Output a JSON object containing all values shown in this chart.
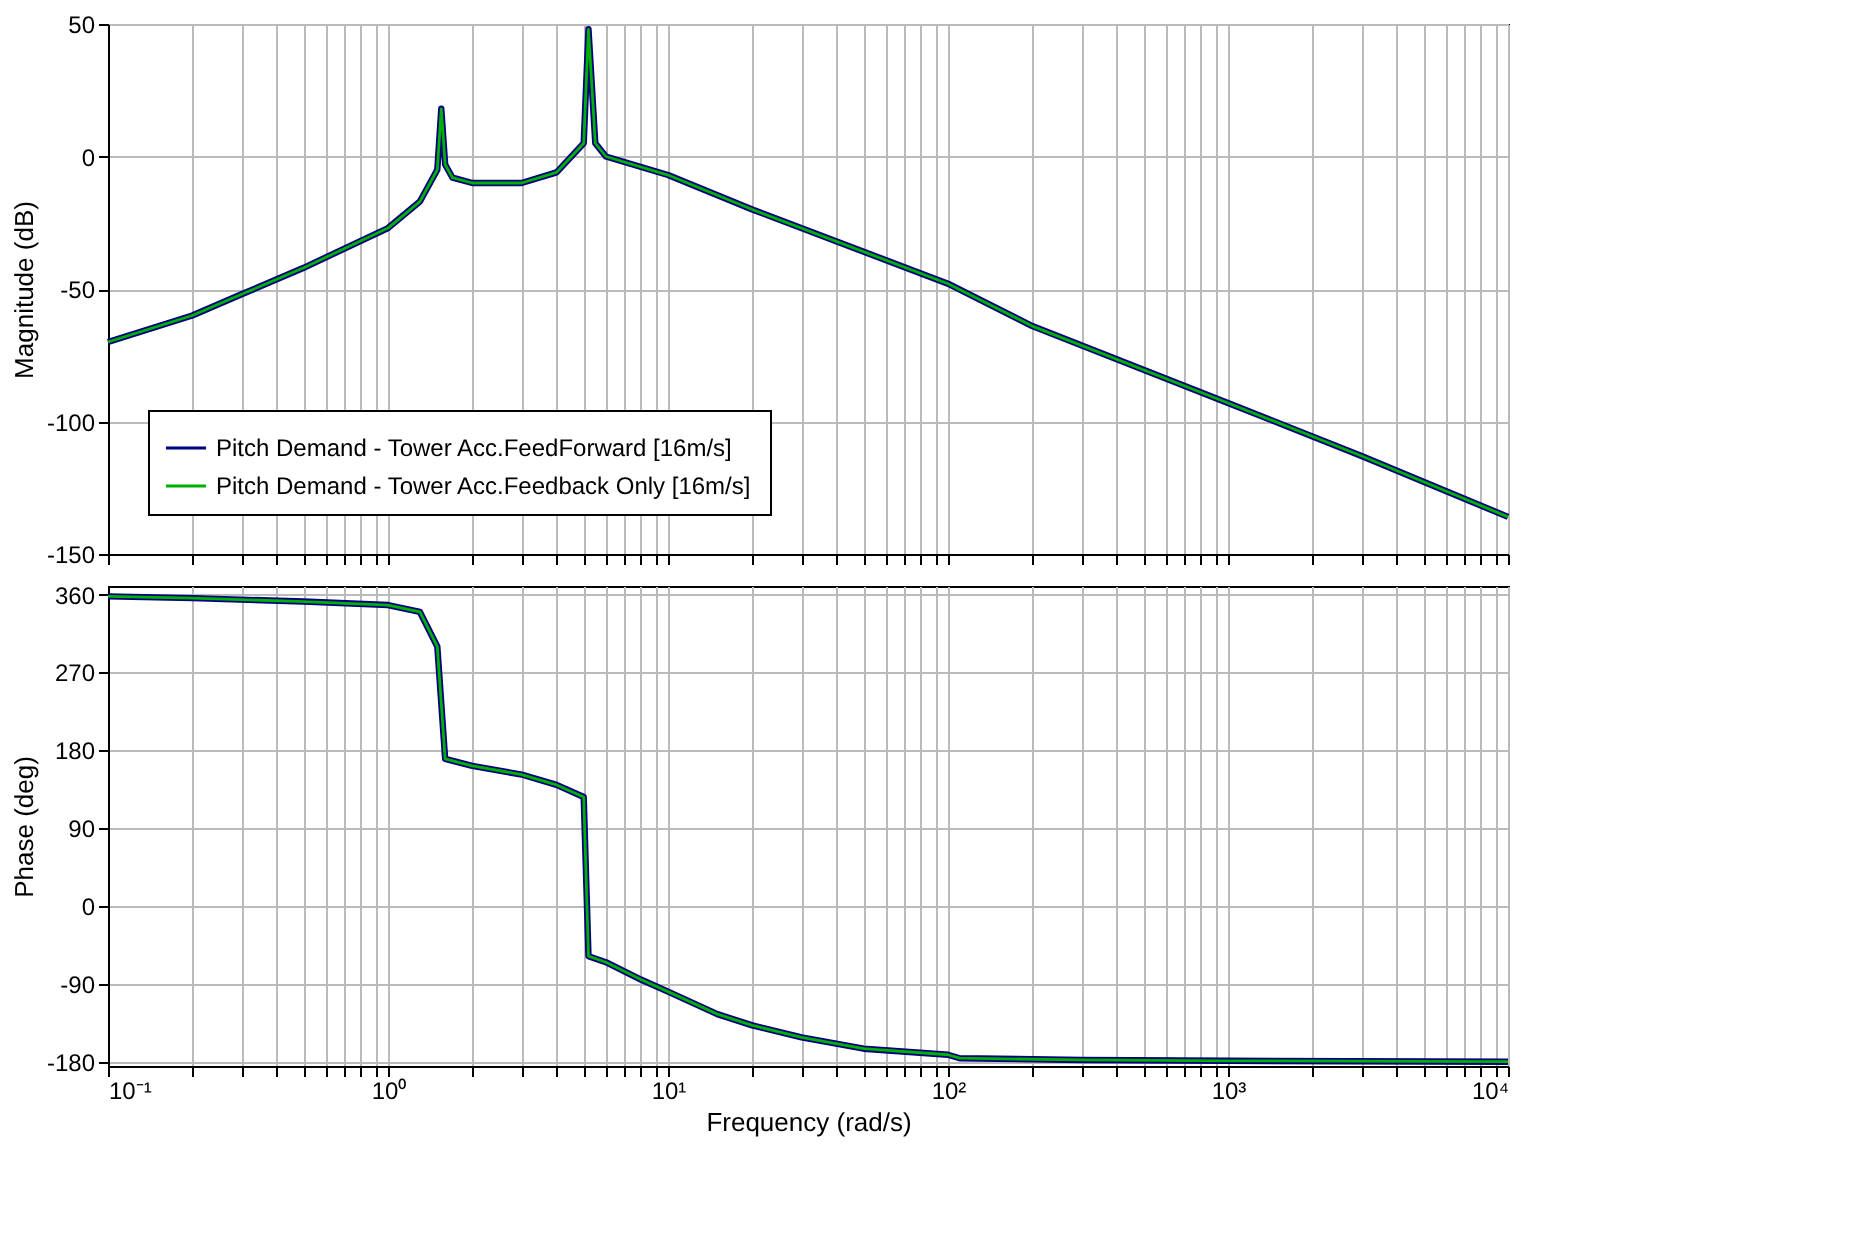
{
  "chart_data": [
    {
      "type": "line",
      "ylabel": "Magnitude (dB)",
      "tick_labels": "y",
      "grid": true,
      "legend": "bottom left",
      "line_style": "solid",
      "log": "x",
      "xlim": [
        0.1,
        10000
      ],
      "xticks": [
        {
          "value": 0.1,
          "label": null
        },
        {
          "value": 0.2,
          "label": null
        },
        {
          "value": 0.3,
          "label": null
        },
        {
          "value": 0.4,
          "label": null
        },
        {
          "value": 0.5,
          "label": null
        },
        {
          "value": 0.6,
          "label": null
        },
        {
          "value": 0.7,
          "label": null
        },
        {
          "value": 0.8,
          "label": null
        },
        {
          "value": 0.9,
          "label": null
        },
        {
          "value": 1,
          "label": null
        },
        {
          "value": 2,
          "label": null
        },
        {
          "value": 3,
          "label": null
        },
        {
          "value": 4,
          "label": null
        },
        {
          "value": 5,
          "label": null
        },
        {
          "value": 6,
          "label": null
        },
        {
          "value": 7,
          "label": null
        },
        {
          "value": 8,
          "label": null
        },
        {
          "value": 9,
          "label": null
        },
        {
          "value": 10,
          "label": null
        },
        {
          "value": 20,
          "label": null
        },
        {
          "value": 30,
          "label": null
        },
        {
          "value": 40,
          "label": null
        },
        {
          "value": 50,
          "label": null
        },
        {
          "value": 60,
          "label": null
        },
        {
          "value": 70,
          "label": null
        },
        {
          "value": 80,
          "label": null
        },
        {
          "value": 90,
          "label": null
        },
        {
          "value": 100,
          "label": null
        },
        {
          "value": 200,
          "label": null
        },
        {
          "value": 300,
          "label": null
        },
        {
          "value": 400,
          "label": null
        },
        {
          "value": 500,
          "label": null
        },
        {
          "value": 600,
          "label": null
        },
        {
          "value": 700,
          "label": null
        },
        {
          "value": 800,
          "label": null
        },
        {
          "value": 900,
          "label": null
        },
        {
          "value": 1000,
          "label": null
        },
        {
          "value": 2000,
          "label": null
        },
        {
          "value": 3000,
          "label": null
        },
        {
          "value": 4000,
          "label": null
        },
        {
          "value": 5000,
          "label": null
        },
        {
          "value": 6000,
          "label": null
        },
        {
          "value": 7000,
          "label": null
        },
        {
          "value": 8000,
          "label": null
        },
        {
          "value": 9000,
          "label": null
        },
        {
          "value": 10000,
          "label": null
        }
      ],
      "ylim": [
        -150,
        50
      ],
      "yticks": [
        -150,
        -100,
        -50,
        0,
        50
      ],
      "x": [
        0.1,
        0.2,
        0.3,
        0.5,
        1,
        1.3,
        1.5,
        1.55,
        1.6,
        1.7,
        2,
        3,
        4,
        5,
        5.2,
        5.5,
        6,
        10,
        20,
        100,
        200,
        1000,
        3000,
        10000
      ],
      "series": [
        {
          "name": "Pitch Demand - Tower Acc.FeedForward [16m/s]",
          "color": "#000080",
          "values": [
            -70,
            -60,
            -52,
            -42,
            -27,
            -17,
            -5,
            18,
            -3,
            -8,
            -10,
            -10,
            -6,
            5,
            48,
            5,
            0,
            -7,
            -20,
            -48,
            -64,
            -93,
            -113,
            -136
          ]
        },
        {
          "name": "Pitch Demand - Tower Acc.Feedback Only [16m/s]",
          "color": "#00b000",
          "values": [
            -70,
            -60,
            -52,
            -42,
            -27,
            -17,
            -5,
            18,
            -3,
            -8,
            -10,
            -10,
            -6,
            5,
            48,
            5,
            0,
            -7,
            -20,
            -48,
            -64,
            -93,
            -113,
            -136
          ]
        }
      ]
    },
    {
      "type": "line",
      "xlabel": "Frequency  (rad/s)",
      "ylabel": "Phase (deg)",
      "grid": true,
      "line_style": "solid",
      "log": "x",
      "xlim": [
        0.1,
        10000
      ],
      "xticks": [
        {
          "value": 0.1,
          "label": "10⁻¹"
        },
        {
          "value": 0.2,
          "label": null
        },
        {
          "value": 0.3,
          "label": null
        },
        {
          "value": 0.4,
          "label": null
        },
        {
          "value": 0.5,
          "label": null
        },
        {
          "value": 0.6,
          "label": null
        },
        {
          "value": 0.7,
          "label": null
        },
        {
          "value": 0.8,
          "label": null
        },
        {
          "value": 0.9,
          "label": null
        },
        {
          "value": 1,
          "label": "10⁰"
        },
        {
          "value": 2,
          "label": null
        },
        {
          "value": 3,
          "label": null
        },
        {
          "value": 4,
          "label": null
        },
        {
          "value": 5,
          "label": null
        },
        {
          "value": 6,
          "label": null
        },
        {
          "value": 7,
          "label": null
        },
        {
          "value": 8,
          "label": null
        },
        {
          "value": 9,
          "label": null
        },
        {
          "value": 10,
          "label": "10¹"
        },
        {
          "value": 20,
          "label": null
        },
        {
          "value": 30,
          "label": null
        },
        {
          "value": 40,
          "label": null
        },
        {
          "value": 50,
          "label": null
        },
        {
          "value": 60,
          "label": null
        },
        {
          "value": 70,
          "label": null
        },
        {
          "value": 80,
          "label": null
        },
        {
          "value": 90,
          "label": null
        },
        {
          "value": 100,
          "label": "10²"
        },
        {
          "value": 200,
          "label": null
        },
        {
          "value": 300,
          "label": null
        },
        {
          "value": 400,
          "label": null
        },
        {
          "value": 500,
          "label": null
        },
        {
          "value": 600,
          "label": null
        },
        {
          "value": 700,
          "label": null
        },
        {
          "value": 800,
          "label": null
        },
        {
          "value": 900,
          "label": null
        },
        {
          "value": 1000,
          "label": "10³"
        },
        {
          "value": 2000,
          "label": null
        },
        {
          "value": 3000,
          "label": null
        },
        {
          "value": 4000,
          "label": null
        },
        {
          "value": 5000,
          "label": null
        },
        {
          "value": 6000,
          "label": null
        },
        {
          "value": 7000,
          "label": null
        },
        {
          "value": 8000,
          "label": null
        },
        {
          "value": 9000,
          "label": null
        },
        {
          "value": 10000,
          "label": "10⁴"
        }
      ],
      "ylim": [
        -185,
        370
      ],
      "yticks": [
        -180,
        -90,
        0,
        90,
        180,
        270,
        360
      ],
      "x": [
        0.1,
        0.2,
        0.5,
        1,
        1.3,
        1.5,
        1.6,
        2,
        3,
        4,
        5,
        5.2,
        6,
        8,
        10,
        15,
        20,
        30,
        50,
        100,
        110,
        300,
        1000,
        10000
      ],
      "series": [
        {
          "color": "#000080",
          "values": [
            358,
            356,
            352,
            348,
            340,
            300,
            170,
            162,
            152,
            140,
            126,
            -58,
            -65,
            -85,
            -99,
            -125,
            -138,
            -152,
            -165,
            -172,
            -176,
            -178,
            -179,
            -180
          ]
        },
        {
          "color": "#00b000",
          "values": [
            358,
            356,
            352,
            348,
            340,
            300,
            170,
            162,
            152,
            140,
            126,
            -58,
            -65,
            -85,
            -99,
            -125,
            -138,
            -152,
            -165,
            -172,
            -176,
            -178,
            -179,
            -180
          ]
        }
      ]
    }
  ]
}
